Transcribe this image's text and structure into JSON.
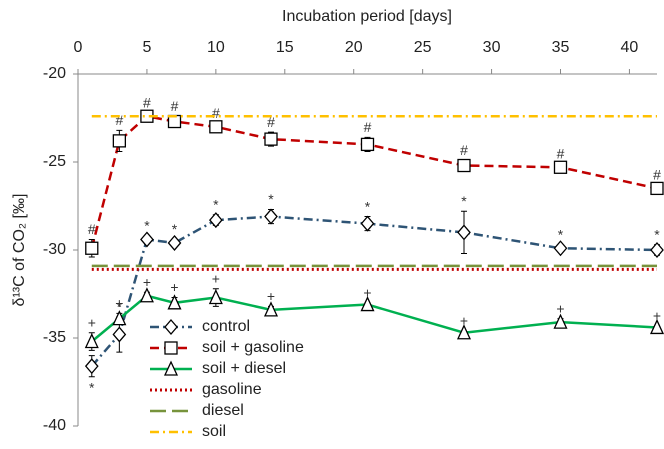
{
  "chart_data": {
    "type": "line",
    "x_label": "Incubation period [days]",
    "y_label": "δ¹³C of CO₂ [‰]",
    "xlim": [
      0,
      42
    ],
    "xticks": [
      0,
      5,
      10,
      15,
      20,
      25,
      30,
      35,
      40
    ],
    "ylim": [
      -40,
      -20
    ],
    "yticks": [
      -40,
      -35,
      -30,
      -25,
      -20
    ],
    "legend": "lower left",
    "series": [
      {
        "name": "control",
        "color": "#2e5475",
        "dash": "dashdot",
        "marker": "diamond",
        "annotation": "*",
        "x": [
          1,
          3,
          5,
          7,
          10,
          14,
          21,
          28,
          35,
          42
        ],
        "values": [
          -36.6,
          -34.8,
          -29.4,
          -29.6,
          -28.3,
          -28.1,
          -28.5,
          -29.0,
          -29.9,
          -30.0
        ],
        "errors": [
          0.6,
          1.0,
          0.2,
          0.2,
          0.3,
          0.4,
          0.4,
          1.2,
          0.2,
          0.3
        ]
      },
      {
        "name": "soil + gasoline",
        "color": "#c00000",
        "dash": "dashed",
        "marker": "square",
        "annotation": "#",
        "x": [
          1,
          3,
          5,
          7,
          10,
          14,
          21,
          28,
          35,
          42
        ],
        "values": [
          -29.9,
          -23.8,
          -22.4,
          -22.7,
          -23.0,
          -23.7,
          -24.0,
          -25.2,
          -25.3,
          -26.5
        ],
        "errors": [
          0.5,
          0.6,
          0.2,
          0.3,
          0.2,
          0.4,
          0.4,
          0.3,
          0.2,
          0.2
        ]
      },
      {
        "name": "soil + diesel",
        "color": "#00b050",
        "dash": "solid",
        "marker": "triangle",
        "annotation": "+",
        "x": [
          1,
          3,
          5,
          7,
          10,
          14,
          21,
          28,
          35,
          42
        ],
        "values": [
          -35.2,
          -33.9,
          -32.6,
          -33.0,
          -32.7,
          -33.4,
          -33.1,
          -34.7,
          -34.1,
          -34.4
        ],
        "errors": [
          0.5,
          0.3,
          0.2,
          0.3,
          0.5,
          0.2,
          0.1,
          0.1,
          0.2,
          0.1
        ]
      },
      {
        "name": "gasoline",
        "color": "#c00000",
        "dash": "dotted",
        "x": [
          1,
          42
        ],
        "values": [
          -31.1,
          -31.1
        ]
      },
      {
        "name": "diesel",
        "color": "#77933c",
        "dash": "longdash",
        "x": [
          1,
          42
        ],
        "values": [
          -30.9,
          -30.9
        ]
      },
      {
        "name": "soil",
        "color": "#ffc000",
        "dash": "dashdot",
        "x": [
          1,
          42
        ],
        "values": [
          -22.4,
          -22.4
        ]
      }
    ]
  }
}
